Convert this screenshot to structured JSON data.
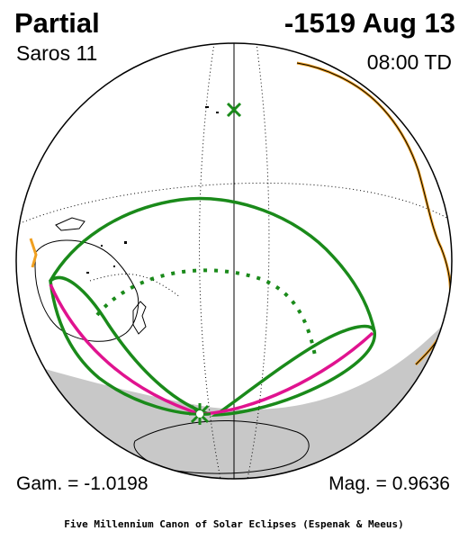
{
  "header": {
    "eclipse_type": "Partial",
    "date": "-1519 Aug 13",
    "saros": "Saros  11",
    "time": "08:00 TD"
  },
  "parameters": {
    "gamma": "Gam. = -1.0198",
    "magnitude": "Mag. = 0.9636"
  },
  "footer": {
    "credit": "Five Millennium Canon of Solar Eclipses (Espenak & Meeus)"
  },
  "colors": {
    "penumbra_limits": "#1a8a1a",
    "max_eclipse_rise_set": "#e0138f",
    "night_shade": "#c8c8c8",
    "coastline_highlight": "#f0a020",
    "coastline": "#000000",
    "background": "#ffffff"
  },
  "markers": {
    "sub_solar_point": "x-mark",
    "greatest_eclipse": "star-mark"
  }
}
